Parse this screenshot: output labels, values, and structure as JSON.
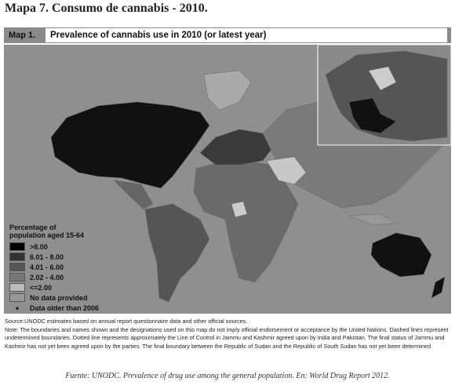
{
  "title": "Mapa 7. Consumo de cannabis - 2010.",
  "map": {
    "label": "Map 1.",
    "title": "Prevalence of cannabis use in 2010 (or latest year)",
    "legend": {
      "title": [
        "Percentage of",
        "population aged 15-64"
      ],
      "items": [
        ">8.00",
        "6.01 - 8.00",
        "4.01 - 6.00",
        "2.02 - 4.00",
        "<=2.00",
        "No data provided",
        "Data older than 2006"
      ]
    }
  },
  "source": "Source:UNODC estimates based on annual report questionnaire data and other official sources.",
  "note": "Note: The boundaries and names shown and the designations used on this map do not imply official endorsement or acceptance by the United Nations. Dashed lines represent undetermined boundaries. Dotted line represents approximately the Line of Control in Jammu and Kashmir agreed upon by India and Pakistan. The final status of Jammu and Kashmir has not yet been agreed upon by the parties. The final boundary between the Republic of Sudan and the Republic of South Sudan has not yet been determined",
  "footer": "Fuente: UNODC. Prevalence of drug use among the general population. En: World Drug Report 2012."
}
